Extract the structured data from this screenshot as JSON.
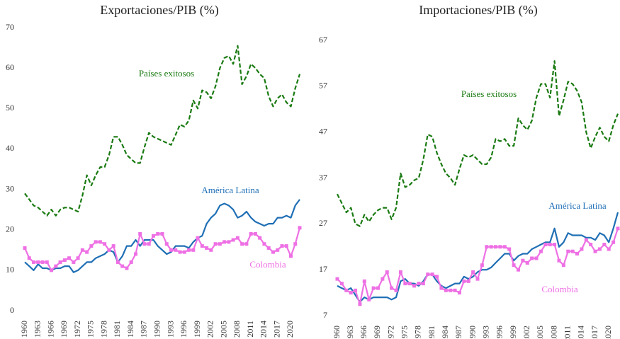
{
  "chart_data": [
    {
      "type": "line",
      "title": "Exportaciones/PIB (%)",
      "x": [
        1960,
        1961,
        1962,
        1963,
        1964,
        1965,
        1966,
        1967,
        1968,
        1969,
        1970,
        1971,
        1972,
        1973,
        1974,
        1975,
        1976,
        1977,
        1978,
        1979,
        1980,
        1981,
        1982,
        1983,
        1984,
        1985,
        1986,
        1987,
        1988,
        1989,
        1990,
        1991,
        1992,
        1993,
        1994,
        1995,
        1996,
        1997,
        1998,
        1999,
        2000,
        2001,
        2002,
        2003,
        2004,
        2005,
        2006,
        2007,
        2008,
        2009,
        2010,
        2011,
        2012,
        2013,
        2014,
        2015,
        2016,
        2017,
        2018,
        2019,
        2020,
        2021,
        2022
      ],
      "xlim": [
        1960,
        2022
      ],
      "xticks": [
        1960,
        1963,
        1966,
        1969,
        1972,
        1975,
        1978,
        1981,
        1984,
        1987,
        1990,
        1993,
        1996,
        1999,
        2002,
        2005,
        2008,
        2011,
        2014,
        2017,
        2020
      ],
      "ylim": [
        0,
        70
      ],
      "yticks": [
        0,
        10,
        20,
        30,
        40,
        50,
        60,
        70
      ],
      "series": [
        {
          "name": "Países exitosos",
          "color": "#1a7a12",
          "dashed": true,
          "values": [
            29,
            27.5,
            26,
            25.5,
            24.5,
            23.5,
            25,
            23.5,
            25,
            25.5,
            25.5,
            25,
            24.5,
            28.5,
            33.5,
            31,
            33.5,
            35.5,
            35.5,
            38.5,
            43,
            43,
            41,
            38.5,
            37.5,
            36.5,
            36.5,
            40.5,
            44,
            43,
            42.5,
            42,
            41.5,
            41,
            43.5,
            46,
            45.5,
            47,
            52,
            50,
            54.5,
            54,
            52.5,
            55.5,
            60,
            62.5,
            63,
            61,
            65.5,
            56,
            58,
            61,
            60,
            58.5,
            57.5,
            53,
            50.5,
            52.5,
            53.5,
            51.5,
            50.5,
            55,
            58.5
          ]
        },
        {
          "name": "América Latina",
          "color": "#1f6fb5",
          "values": [
            12,
            11,
            10,
            11.5,
            10.5,
            10.5,
            10,
            10.5,
            10.5,
            11,
            11,
            9.5,
            10,
            11,
            12,
            12,
            13,
            13.5,
            14,
            15,
            14.5,
            12,
            13.5,
            16,
            16,
            17.5,
            16,
            17.5,
            17.5,
            17.5,
            16,
            15,
            14,
            14.5,
            16,
            16,
            16,
            15.5,
            17,
            18,
            18.5,
            21.5,
            23,
            24,
            26,
            26.5,
            26,
            25,
            23,
            23.5,
            24.5,
            23,
            22,
            21.5,
            21,
            21.5,
            21.5,
            23,
            23,
            23.5,
            23,
            26,
            27.5
          ]
        },
        {
          "name": "Colombia",
          "color": "#ee70e4",
          "markers": true,
          "values": [
            15.5,
            13,
            12,
            12,
            12,
            12,
            10,
            11,
            12,
            12.5,
            13,
            12,
            13,
            15,
            14.5,
            16,
            17,
            17,
            16.5,
            15,
            16,
            12,
            11,
            10.5,
            12,
            14,
            19,
            16.5,
            16.5,
            18.5,
            19,
            19,
            16.5,
            15,
            15,
            14.5,
            14.5,
            15,
            15,
            18,
            16,
            15.5,
            15,
            16.5,
            16.5,
            17,
            17,
            17.5,
            18,
            16.5,
            16.5,
            19,
            19,
            18,
            16.5,
            15.5,
            14.5,
            15,
            16,
            16,
            13.5,
            16.5,
            20.5
          ]
        }
      ]
    },
    {
      "type": "line",
      "title": "Importaciones/PIB (%)",
      "x": [
        1960,
        1961,
        1962,
        1963,
        1964,
        1965,
        1966,
        1967,
        1968,
        1969,
        1970,
        1971,
        1972,
        1973,
        1974,
        1975,
        1976,
        1977,
        1978,
        1979,
        1980,
        1981,
        1982,
        1983,
        1984,
        1985,
        1986,
        1987,
        1988,
        1989,
        1990,
        1991,
        1992,
        1993,
        1994,
        1995,
        1996,
        1997,
        1998,
        1999,
        2000,
        2001,
        2002,
        2003,
        2004,
        2005,
        2006,
        2007,
        2008,
        2009,
        2010,
        2011,
        2012,
        2013,
        2014,
        2015,
        2016,
        2017,
        2018,
        2019,
        2020,
        2021,
        2022
      ],
      "xlim": [
        1960,
        2022
      ],
      "xticks": [
        1960,
        1963,
        1966,
        1969,
        1972,
        1975,
        1978,
        1981,
        1984,
        1987,
        1990,
        1993,
        1996,
        1999,
        2002,
        2005,
        2008,
        2011,
        2014,
        2017,
        2020
      ],
      "ylim": [
        7,
        67
      ],
      "yticks": [
        7,
        17,
        27,
        37,
        47,
        57,
        67
      ],
      "series": [
        {
          "name": "Países exitosos",
          "color": "#1a7a12",
          "dashed": true,
          "values": [
            33.5,
            31.5,
            29.5,
            30.5,
            27,
            26.5,
            29,
            27.5,
            29,
            30,
            30.5,
            30.5,
            28,
            30.5,
            38,
            35,
            35.5,
            36.5,
            37,
            41,
            46.5,
            46,
            42.5,
            40,
            38,
            37,
            35.5,
            39,
            42,
            41.5,
            42,
            41,
            40,
            40,
            41.5,
            45.5,
            45,
            45.5,
            44,
            44,
            50,
            48.5,
            47.5,
            49.5,
            54.5,
            57.5,
            57.5,
            54.5,
            62.5,
            50.5,
            54,
            58,
            57.5,
            56,
            53.5,
            47,
            43.5,
            46,
            48,
            46,
            45,
            48.5,
            51
          ]
        },
        {
          "name": "América Latina",
          "color": "#1f6fb5",
          "values": [
            13.5,
            13,
            12.5,
            13,
            11.5,
            10,
            11,
            10.5,
            11,
            11,
            11,
            11,
            10.5,
            11,
            14.5,
            15,
            14,
            14,
            13.5,
            14.5,
            16,
            16,
            14.5,
            13.5,
            13,
            13.5,
            14,
            14,
            15.5,
            15,
            15.5,
            16.5,
            17,
            17,
            17.5,
            18.5,
            19.5,
            20.5,
            20.5,
            19,
            20,
            20.5,
            20.5,
            21.5,
            22,
            22.5,
            23,
            23,
            26,
            22,
            23,
            25,
            24.5,
            24.5,
            24.5,
            24,
            24,
            23.5,
            25,
            24.5,
            23,
            26,
            29.5
          ]
        },
        {
          "name": "Colombia",
          "color": "#ee70e4",
          "markers": true,
          "values": [
            15,
            14,
            12.5,
            12,
            12.5,
            9.5,
            14.5,
            10.5,
            13,
            13,
            15,
            16.5,
            13,
            12.5,
            16.5,
            14,
            14,
            13.5,
            14,
            14,
            16,
            16,
            15.5,
            13,
            12.5,
            12.5,
            12.5,
            12,
            14.5,
            14.5,
            16.5,
            15,
            18,
            22,
            22,
            22,
            22,
            22,
            21.5,
            18,
            17,
            19,
            18.5,
            19.5,
            19.5,
            21,
            22.5,
            22.5,
            22.5,
            19,
            18,
            21,
            21,
            20.5,
            21.5,
            23.5,
            22.5,
            21,
            21.5,
            22.5,
            21.5,
            23,
            26
          ]
        }
      ]
    }
  ]
}
